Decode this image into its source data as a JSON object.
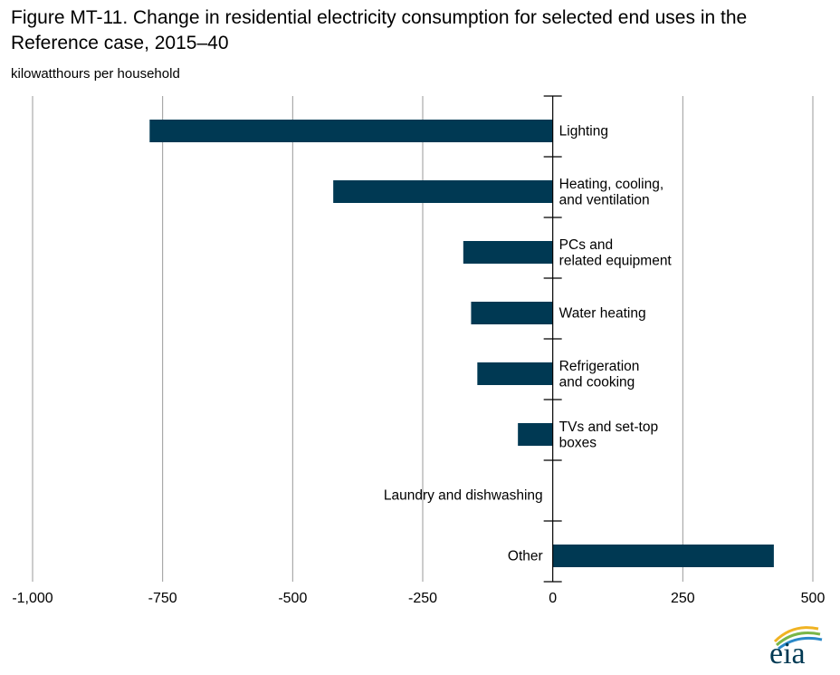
{
  "title": "Figure MT-11. Change in residential electricity consumption for selected end uses in the Reference case, 2015–40",
  "subtitle": "kilowatthours per household",
  "logo_text": "eia",
  "colors": {
    "bar": "#003953",
    "grid": "#9a9a9a",
    "axis": "#000000"
  },
  "chart_data": {
    "type": "bar",
    "orientation": "horizontal",
    "title": "Figure MT-11. Change in residential electricity consumption for selected end uses in the Reference case, 2015–40",
    "ylabel": "kilowatthours per household",
    "categories": [
      [
        "Lighting"
      ],
      [
        "Heating, cooling,",
        "and ventilation"
      ],
      [
        "PCs and",
        "related equipment"
      ],
      [
        "Water heating"
      ],
      [
        "Refrigeration",
        "and cooking"
      ],
      [
        "TVs and set-top",
        "boxes"
      ],
      [
        "Laundry and dishwashing"
      ],
      [
        "Other"
      ]
    ],
    "values": [
      -775,
      -422,
      -172,
      -157,
      -145,
      -67,
      0,
      425
    ],
    "xlim": [
      -1000,
      500
    ],
    "xticks": [
      -1000,
      -750,
      -500,
      -250,
      0,
      250,
      500
    ],
    "xtick_labels": [
      "-1,000",
      "-750",
      "-500",
      "-250",
      "0",
      "250",
      "500"
    ],
    "grid": true
  }
}
